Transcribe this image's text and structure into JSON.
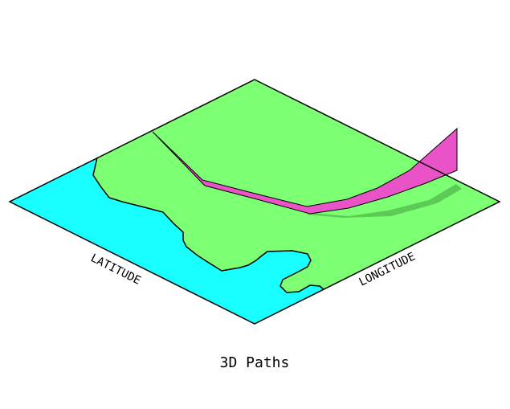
{
  "title": "3D Paths",
  "axes": {
    "x_label": "LATITUDE",
    "y_label": "LONGITUDE"
  },
  "colors": {
    "ocean": "#19FFFF",
    "land": "#7CFF72",
    "path": "#EA52C8",
    "shadow": "#5CCB56",
    "outline": "#000000",
    "background": "#FFFFFF"
  }
}
